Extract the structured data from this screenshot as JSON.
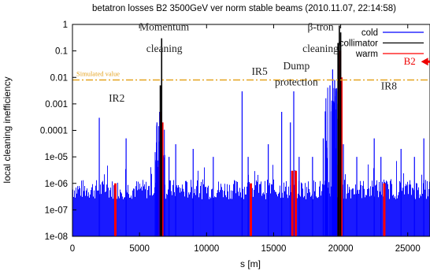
{
  "chart_data": {
    "type": "bar",
    "title": "betatron losses B2 3500GeV ver norm stable beams (2010.11.07, 22:14:58)",
    "xlabel": "s [m]",
    "ylabel": "local cleaning inefficiency",
    "xlim": [
      0,
      26659
    ],
    "ylim": [
      1e-08,
      1
    ],
    "yscale": "log",
    "grid": false,
    "legend_position": "top-right",
    "x_ticks": [
      0,
      5000,
      10000,
      15000,
      20000,
      25000
    ],
    "x_tick_labels": [
      "0",
      "5000",
      "10000",
      "15000",
      "20000",
      "25000"
    ],
    "y_ticks": [
      1e-08,
      1e-07,
      1e-06,
      1e-05,
      0.0001,
      0.001,
      0.01,
      0.1,
      1
    ],
    "y_tick_labels": [
      "1e-08",
      "1e-07",
      "1e-06",
      "1e-05",
      "0.0001",
      "0.001",
      "0.01",
      "0.1",
      "1"
    ],
    "colors": {
      "cold": "#0000ff",
      "collimator": "#000000",
      "warm": "#ff0000",
      "simulated": "#e5a31f",
      "arrow": "#ee0000"
    },
    "simulated_value": {
      "label": "Simulated value",
      "y": 0.008
    },
    "series": [
      {
        "name": "cold",
        "x": [
          2000,
          4000,
          6300,
          6500,
          7200,
          7700,
          9000,
          10500,
          12650,
          13100,
          14600,
          15600,
          16250,
          16500,
          16900,
          17900,
          18700,
          19200,
          19400,
          19550,
          19700,
          20200,
          21200,
          22500,
          23000,
          24500,
          25500,
          26200
        ],
        "values": [
          0.0003,
          5e-05,
          0.0002,
          0.0005,
          1e-05,
          3e-05,
          2e-05,
          1e-05,
          0.003,
          1e-05,
          3e-05,
          0.0005,
          0.0002,
          0.003,
          1e-05,
          1e-05,
          5e-05,
          0.005,
          0.02,
          0.008,
          0.003,
          3e-05,
          1e-05,
          5e-05,
          1e-05,
          2e-05,
          1e-05,
          5e-05
        ]
      },
      {
        "name": "collimator",
        "x": [
          6550,
          6650,
          19800,
          19900,
          20000
        ],
        "values": [
          0.005,
          0.3,
          0.2,
          0.9,
          0.5
        ]
      },
      {
        "name": "warm",
        "x": [
          3200,
          6600,
          6700,
          13300,
          16400,
          16650,
          19850,
          19950,
          20050,
          23250
        ],
        "values": [
          1e-06,
          0.0005,
          0.0002,
          1e-06,
          3e-06,
          3e-06,
          0.03,
          0.1,
          0.01,
          1e-06
        ]
      }
    ],
    "annotations": [
      {
        "text": "Momentum",
        "x": 6850,
        "y": 0.6
      },
      {
        "text": "cleaning",
        "x": 6850,
        "y": 0.09
      },
      {
        "text": "β-tron",
        "x": 18500,
        "y": 0.6
      },
      {
        "text": "cleaning",
        "x": 18500,
        "y": 0.09
      },
      {
        "text": "IR5",
        "x": 13950,
        "y": 0.0125
      },
      {
        "text": "Dump",
        "x": 16700,
        "y": 0.02
      },
      {
        "text": "protection",
        "x": 16700,
        "y": 0.005
      },
      {
        "text": "IR2",
        "x": 3300,
        "y": 0.0012
      },
      {
        "text": "IR8",
        "x": 23600,
        "y": 0.0035
      },
      {
        "text": "B2",
        "x": 24700,
        "y": 0.03
      }
    ]
  }
}
